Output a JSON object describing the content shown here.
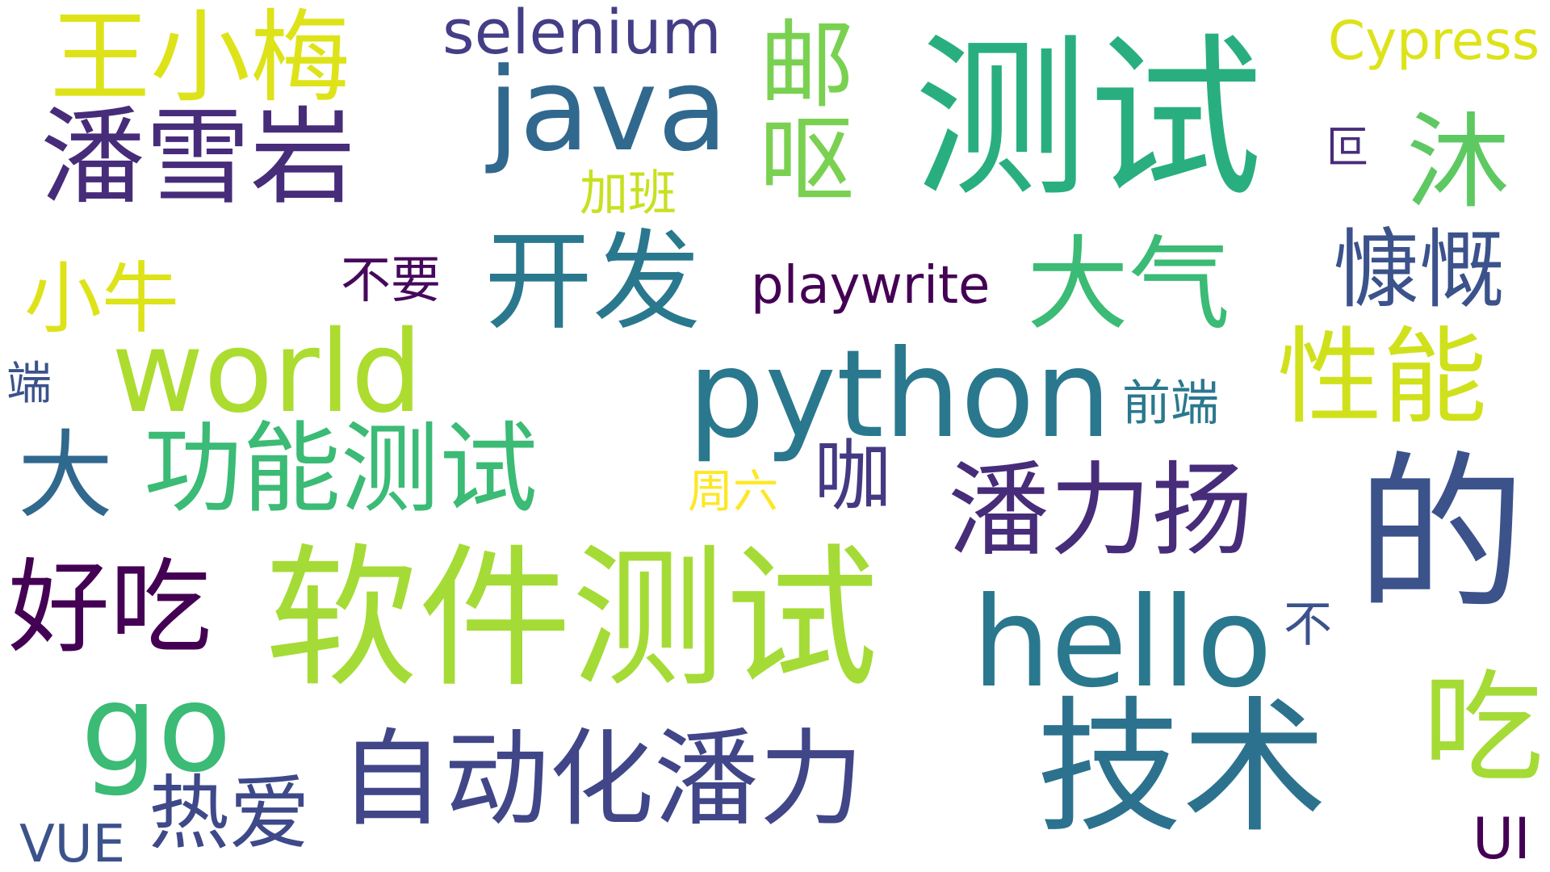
{
  "words": {
    "wang_xiaomei": {
      "text": "王小梅",
      "color": "#dde318"
    },
    "pan_xueyan": {
      "text": "潘雪岩",
      "color": "#472c7a"
    },
    "selenium": {
      "text": "selenium",
      "color": "#433e85"
    },
    "java": {
      "text": "java",
      "color": "#31688e"
    },
    "you_ou": {
      "text": "邮呕",
      "color": "#7ad151"
    },
    "ceshi": {
      "text": "测试",
      "color": "#29af7f"
    },
    "cypress": {
      "text": "Cypress",
      "color": "#dde318"
    },
    "mu": {
      "text": "沐",
      "color": "#5ec962"
    },
    "hui": {
      "text": "叵",
      "color": "#472c7a"
    },
    "jiaban": {
      "text": "加班",
      "color": "#c8e020"
    },
    "kaifa": {
      "text": "开发",
      "color": "#2a788e"
    },
    "daqi": {
      "text": "大气",
      "color": "#3bbb75"
    },
    "kangkai": {
      "text": "慷慨",
      "color": "#3b528b"
    },
    "xiaoniu": {
      "text": "小牛",
      "color": "#dde318"
    },
    "buyao": {
      "text": "不要",
      "color": "#46085c"
    },
    "playwrite": {
      "text": "playwrite",
      "color": "#440154"
    },
    "world": {
      "text": "world",
      "color": "#addc30"
    },
    "python": {
      "text": "python",
      "color": "#2a788e"
    },
    "xingneng": {
      "text": "性能",
      "color": "#d0e11c"
    },
    "duan": {
      "text": "端",
      "color": "#3b528b"
    },
    "qianduan": {
      "text": "前端",
      "color": "#2a788e"
    },
    "da": {
      "text": "大",
      "color": "#31688e"
    },
    "gongneng_ceshi": {
      "text": "功能测试",
      "color": "#3bbb75"
    },
    "zhouliu": {
      "text": "周六",
      "color": "#fde725"
    },
    "ka": {
      "text": "咖",
      "color": "#443a83"
    },
    "pan_liyang": {
      "text": "潘力扬",
      "color": "#472c7a"
    },
    "de": {
      "text": "的",
      "color": "#3b528b"
    },
    "haochi": {
      "text": "好吃",
      "color": "#440154"
    },
    "ruanjian_ceshi": {
      "text": "软件测试",
      "color": "#a5db36"
    },
    "hello": {
      "text": "hello",
      "color": "#2a788e"
    },
    "bu": {
      "text": "不",
      "color": "#3b528b"
    },
    "chi": {
      "text": "吃",
      "color": "#a5db36"
    },
    "go": {
      "text": "go",
      "color": "#3bbb75"
    },
    "zidonghua_panli": {
      "text": "自动化潘力",
      "color": "#404688"
    },
    "jishu": {
      "text": "技术",
      "color": "#2c728e"
    },
    "reai": {
      "text": "热爱",
      "color": "#3e4989"
    },
    "vue": {
      "text": "VUE",
      "color": "#3b528b"
    },
    "ui": {
      "text": "UI",
      "color": "#440154"
    }
  }
}
